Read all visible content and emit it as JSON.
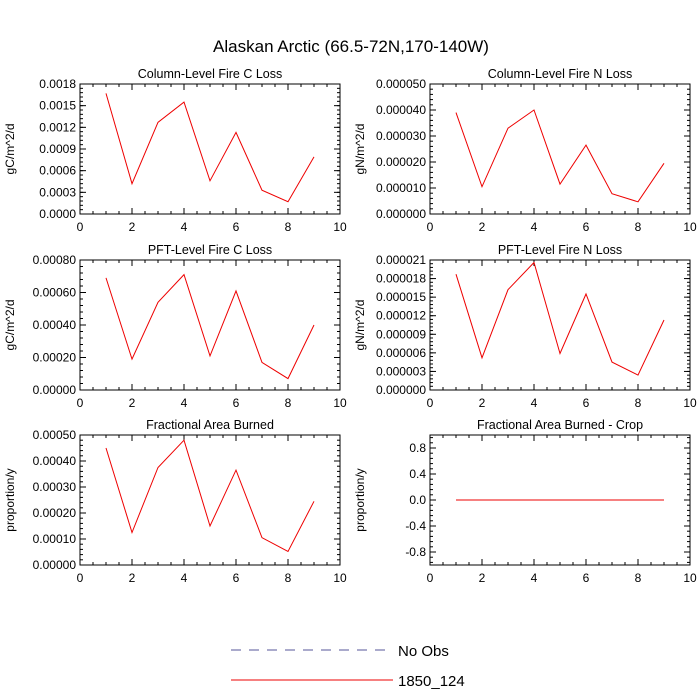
{
  "figure": {
    "title": "Alaskan Arctic (66.5-72N,170-140W)",
    "legend": [
      {
        "label": "No Obs",
        "color": "#555599",
        "dash": "dashed"
      },
      {
        "label": "1850_124",
        "color": "#ee0000",
        "dash": "solid"
      }
    ]
  },
  "chart_data": [
    {
      "type": "line",
      "title": "Column-Level Fire C Loss",
      "xlabel": "",
      "ylabel": "gC/m^2/d",
      "xlim": [
        0,
        10
      ],
      "ylim": [
        0,
        0.0018
      ],
      "x_ticks": [
        "0",
        "2",
        "4",
        "6",
        "8",
        "10"
      ],
      "y_ticks": [
        "0.0000",
        "0.0003",
        "0.0006",
        "0.0009",
        "0.0012",
        "0.0015",
        "0.0018"
      ],
      "x": [
        1,
        2,
        3,
        4,
        5,
        6,
        7,
        8,
        9
      ],
      "series": [
        {
          "name": "1850_124",
          "color": "#ee0000",
          "values": [
            0.00167,
            0.00042,
            0.00127,
            0.00155,
            0.00046,
            0.00113,
            0.00033,
            0.00017,
            0.00079
          ]
        }
      ]
    },
    {
      "type": "line",
      "title": "Column-Level Fire N Loss",
      "xlabel": "",
      "ylabel": "gN/m^2/d",
      "xlim": [
        0,
        10
      ],
      "ylim": [
        0,
        5e-05
      ],
      "x_ticks": [
        "0",
        "2",
        "4",
        "6",
        "8",
        "10"
      ],
      "y_ticks": [
        "0.000000",
        "0.000010",
        "0.000020",
        "0.000030",
        "0.000040",
        "0.000050"
      ],
      "x": [
        1,
        2,
        3,
        4,
        5,
        6,
        7,
        8,
        9
      ],
      "series": [
        {
          "name": "1850_124",
          "color": "#ee0000",
          "values": [
            3.9e-05,
            1.05e-05,
            3.3e-05,
            4e-05,
            1.15e-05,
            2.65e-05,
            7.8e-06,
            4.7e-06,
            1.95e-05
          ]
        }
      ]
    },
    {
      "type": "line",
      "title": "PFT-Level Fire C Loss",
      "xlabel": "",
      "ylabel": "gC/m^2/d",
      "xlim": [
        0,
        10
      ],
      "ylim": [
        0,
        0.0008
      ],
      "x_ticks": [
        "0",
        "2",
        "4",
        "6",
        "8",
        "10"
      ],
      "y_ticks": [
        "0.00000",
        "0.00020",
        "0.00040",
        "0.00060",
        "0.00080"
      ],
      "x": [
        1,
        2,
        3,
        4,
        5,
        6,
        7,
        8,
        9
      ],
      "series": [
        {
          "name": "1850_124",
          "color": "#ee0000",
          "values": [
            0.00069,
            0.00019,
            0.00054,
            0.00071,
            0.00021,
            0.00061,
            0.00017,
            7e-05,
            0.0004
          ]
        }
      ]
    },
    {
      "type": "line",
      "title": "PFT-Level Fire N Loss",
      "xlabel": "",
      "ylabel": "gN/m^2/d",
      "xlim": [
        0,
        10
      ],
      "ylim": [
        0,
        2.1e-05
      ],
      "x_ticks": [
        "0",
        "2",
        "4",
        "6",
        "8",
        "10"
      ],
      "y_ticks": [
        "0.000000",
        "0.000003",
        "0.000006",
        "0.000009",
        "0.000012",
        "0.000015",
        "0.000018",
        "0.000021"
      ],
      "x": [
        1,
        2,
        3,
        4,
        5,
        6,
        7,
        8,
        9
      ],
      "series": [
        {
          "name": "1850_124",
          "color": "#ee0000",
          "values": [
            1.87e-05,
            5.2e-06,
            1.62e-05,
            2.06e-05,
            5.9e-06,
            1.55e-05,
            4.5e-06,
            2.4e-06,
            1.13e-05
          ]
        }
      ]
    },
    {
      "type": "line",
      "title": "Fractional Area Burned",
      "xlabel": "",
      "ylabel": "proportion/y",
      "xlim": [
        0,
        10
      ],
      "ylim": [
        0,
        0.0005
      ],
      "x_ticks": [
        "0",
        "2",
        "4",
        "6",
        "8",
        "10"
      ],
      "y_ticks": [
        "0.00000",
        "0.00010",
        "0.00020",
        "0.00030",
        "0.00040",
        "0.00050"
      ],
      "x": [
        1,
        2,
        3,
        4,
        5,
        6,
        7,
        8,
        9
      ],
      "series": [
        {
          "name": "1850_124",
          "color": "#ee0000",
          "values": [
            0.00045,
            0.000125,
            0.000375,
            0.00048,
            0.00015,
            0.000365,
            0.000105,
            5.2e-05,
            0.000245
          ]
        }
      ]
    },
    {
      "type": "line",
      "title": "Fractional Area Burned - Crop",
      "xlabel": "",
      "ylabel": "proportion/y",
      "xlim": [
        0,
        10
      ],
      "ylim": [
        -1,
        1
      ],
      "x_ticks": [
        "0",
        "2",
        "4",
        "6",
        "8",
        "10"
      ],
      "y_ticks": [
        "-0.8",
        "-0.4",
        "0.0",
        "0.4",
        "0.8"
      ],
      "x": [
        1,
        2,
        3,
        4,
        5,
        6,
        7,
        8,
        9
      ],
      "series": [
        {
          "name": "1850_124",
          "color": "#ee0000",
          "values": [
            0,
            0,
            0,
            0,
            0,
            0,
            0,
            0,
            0
          ]
        }
      ]
    }
  ]
}
